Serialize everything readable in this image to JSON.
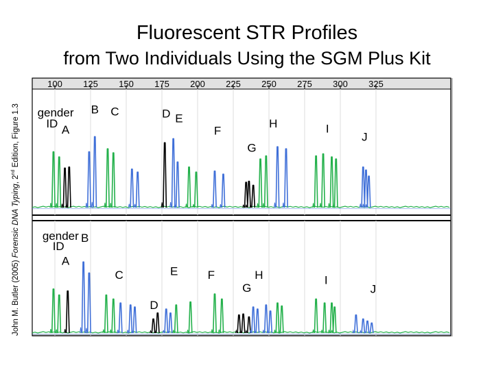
{
  "title": "Fluorescent STR Profiles",
  "subtitle": "from Two Individuals Using the SGM Plus Kit",
  "side_credit": {
    "author": "John M. Butler (2005) ",
    "book": "Forensic DNA Typing",
    "edition_num": ", 2",
    "edition_sup": "nd",
    "rest": " Edition,  Figure 1.3"
  },
  "colors": {
    "green": "#22b04a",
    "blue": "#3f6fd8",
    "black": "#000000",
    "border": "#000000"
  },
  "chart_data": {
    "type": "line",
    "xlim": [
      95,
      330
    ],
    "x_ticks": [
      "100",
      "125",
      "150",
      "175",
      "200",
      "225",
      "250",
      "275",
      "300",
      "325"
    ],
    "grid": true,
    "panels": [
      {
        "name": "top",
        "labels": [
          {
            "text": "gender",
            "x": 100.5,
            "y": 0.9
          },
          {
            "text": "ID",
            "x": 98,
            "y": 0.79
          },
          {
            "text": "A",
            "x": 107.5,
            "y": 0.73
          },
          {
            "text": "B",
            "x": 128,
            "y": 0.93
          },
          {
            "text": "C",
            "x": 142,
            "y": 0.91
          },
          {
            "text": "D",
            "x": 178,
            "y": 0.89
          },
          {
            "text": "E",
            "x": 187,
            "y": 0.84
          },
          {
            "text": "F",
            "x": 214,
            "y": 0.72
          },
          {
            "text": "G",
            "x": 238,
            "y": 0.55
          },
          {
            "text": "H",
            "x": 253,
            "y": 0.79
          },
          {
            "text": "I",
            "x": 291,
            "y": 0.74
          },
          {
            "text": "J",
            "x": 317,
            "y": 0.66
          }
        ],
        "peaks": [
          {
            "x": 99,
            "h": 0.55,
            "color": "green"
          },
          {
            "x": 103,
            "h": 0.5,
            "color": "green"
          },
          {
            "x": 107,
            "h": 0.39,
            "color": "black"
          },
          {
            "x": 110,
            "h": 0.4,
            "color": "black"
          },
          {
            "x": 124,
            "h": 0.55,
            "color": "blue"
          },
          {
            "x": 128,
            "h": 0.7,
            "color": "blue"
          },
          {
            "x": 137,
            "h": 0.58,
            "color": "green"
          },
          {
            "x": 141,
            "h": 0.54,
            "color": "green"
          },
          {
            "x": 154,
            "h": 0.38,
            "color": "blue"
          },
          {
            "x": 158,
            "h": 0.35,
            "color": "blue"
          },
          {
            "x": 177,
            "h": 0.64,
            "color": "black"
          },
          {
            "x": 183,
            "h": 0.68,
            "color": "blue"
          },
          {
            "x": 186,
            "h": 0.45,
            "color": "blue"
          },
          {
            "x": 194,
            "h": 0.4,
            "color": "green"
          },
          {
            "x": 199,
            "h": 0.35,
            "color": "green"
          },
          {
            "x": 212,
            "h": 0.36,
            "color": "blue"
          },
          {
            "x": 218,
            "h": 0.33,
            "color": "blue"
          },
          {
            "x": 234,
            "h": 0.25,
            "color": "black"
          },
          {
            "x": 236,
            "h": 0.26,
            "color": "black"
          },
          {
            "x": 239,
            "h": 0.22,
            "color": "black"
          },
          {
            "x": 244,
            "h": 0.48,
            "color": "green"
          },
          {
            "x": 248,
            "h": 0.51,
            "color": "green"
          },
          {
            "x": 256,
            "h": 0.6,
            "color": "blue"
          },
          {
            "x": 262,
            "h": 0.58,
            "color": "blue"
          },
          {
            "x": 283,
            "h": 0.51,
            "color": "green"
          },
          {
            "x": 288,
            "h": 0.53,
            "color": "green"
          },
          {
            "x": 294,
            "h": 0.5,
            "color": "green"
          },
          {
            "x": 297,
            "h": 0.48,
            "color": "green"
          },
          {
            "x": 316,
            "h": 0.4,
            "color": "blue"
          },
          {
            "x": 318,
            "h": 0.37,
            "color": "blue"
          },
          {
            "x": 320,
            "h": 0.31,
            "color": "blue"
          }
        ]
      },
      {
        "name": "bottom",
        "labels": [
          {
            "text": "gender",
            "x": 104,
            "y": 0.93
          },
          {
            "text": "B",
            "x": 121,
            "y": 0.91
          },
          {
            "text": "ID",
            "x": 102.5,
            "y": 0.83
          },
          {
            "text": "A",
            "x": 107.5,
            "y": 0.68
          },
          {
            "text": "C",
            "x": 145,
            "y": 0.54
          },
          {
            "text": "E",
            "x": 183.5,
            "y": 0.58
          },
          {
            "text": "F",
            "x": 209.5,
            "y": 0.54
          },
          {
            "text": "G",
            "x": 234.5,
            "y": 0.41
          },
          {
            "text": "H",
            "x": 243,
            "y": 0.54
          },
          {
            "text": "I",
            "x": 290,
            "y": 0.49
          },
          {
            "text": "J",
            "x": 323,
            "y": 0.4
          },
          {
            "text": "D",
            "x": 169.5,
            "y": 0.24
          }
        ],
        "peaks": [
          {
            "x": 99,
            "h": 0.44,
            "color": "green"
          },
          {
            "x": 103,
            "h": 0.38,
            "color": "green"
          },
          {
            "x": 109,
            "h": 0.42,
            "color": "black"
          },
          {
            "x": 120,
            "h": 0.71,
            "color": "blue"
          },
          {
            "x": 124,
            "h": 0.6,
            "color": "blue"
          },
          {
            "x": 136,
            "h": 0.38,
            "color": "green"
          },
          {
            "x": 141,
            "h": 0.34,
            "color": "green"
          },
          {
            "x": 146,
            "h": 0.3,
            "color": "blue"
          },
          {
            "x": 153,
            "h": 0.28,
            "color": "blue"
          },
          {
            "x": 156,
            "h": 0.26,
            "color": "blue"
          },
          {
            "x": 169,
            "h": 0.14,
            "color": "black"
          },
          {
            "x": 172,
            "h": 0.2,
            "color": "black"
          },
          {
            "x": 178,
            "h": 0.24,
            "color": "blue"
          },
          {
            "x": 181,
            "h": 0.2,
            "color": "blue"
          },
          {
            "x": 185,
            "h": 0.28,
            "color": "green"
          },
          {
            "x": 195,
            "h": 0.31,
            "color": "green"
          },
          {
            "x": 212,
            "h": 0.39,
            "color": "green"
          },
          {
            "x": 217,
            "h": 0.34,
            "color": "green"
          },
          {
            "x": 229,
            "h": 0.18,
            "color": "black"
          },
          {
            "x": 232,
            "h": 0.19,
            "color": "black"
          },
          {
            "x": 236,
            "h": 0.16,
            "color": "black"
          },
          {
            "x": 239,
            "h": 0.26,
            "color": "blue"
          },
          {
            "x": 242,
            "h": 0.24,
            "color": "blue"
          },
          {
            "x": 248,
            "h": 0.28,
            "color": "blue"
          },
          {
            "x": 251,
            "h": 0.22,
            "color": "blue"
          },
          {
            "x": 256,
            "h": 0.3,
            "color": "green"
          },
          {
            "x": 259,
            "h": 0.27,
            "color": "green"
          },
          {
            "x": 283,
            "h": 0.34,
            "color": "green"
          },
          {
            "x": 289,
            "h": 0.3,
            "color": "green"
          },
          {
            "x": 294,
            "h": 0.3,
            "color": "green"
          },
          {
            "x": 296,
            "h": 0.26,
            "color": "green"
          },
          {
            "x": 311,
            "h": 0.18,
            "color": "blue"
          },
          {
            "x": 316,
            "h": 0.14,
            "color": "blue"
          },
          {
            "x": 319,
            "h": 0.12,
            "color": "blue"
          },
          {
            "x": 322,
            "h": 0.1,
            "color": "blue"
          }
        ]
      }
    ]
  }
}
